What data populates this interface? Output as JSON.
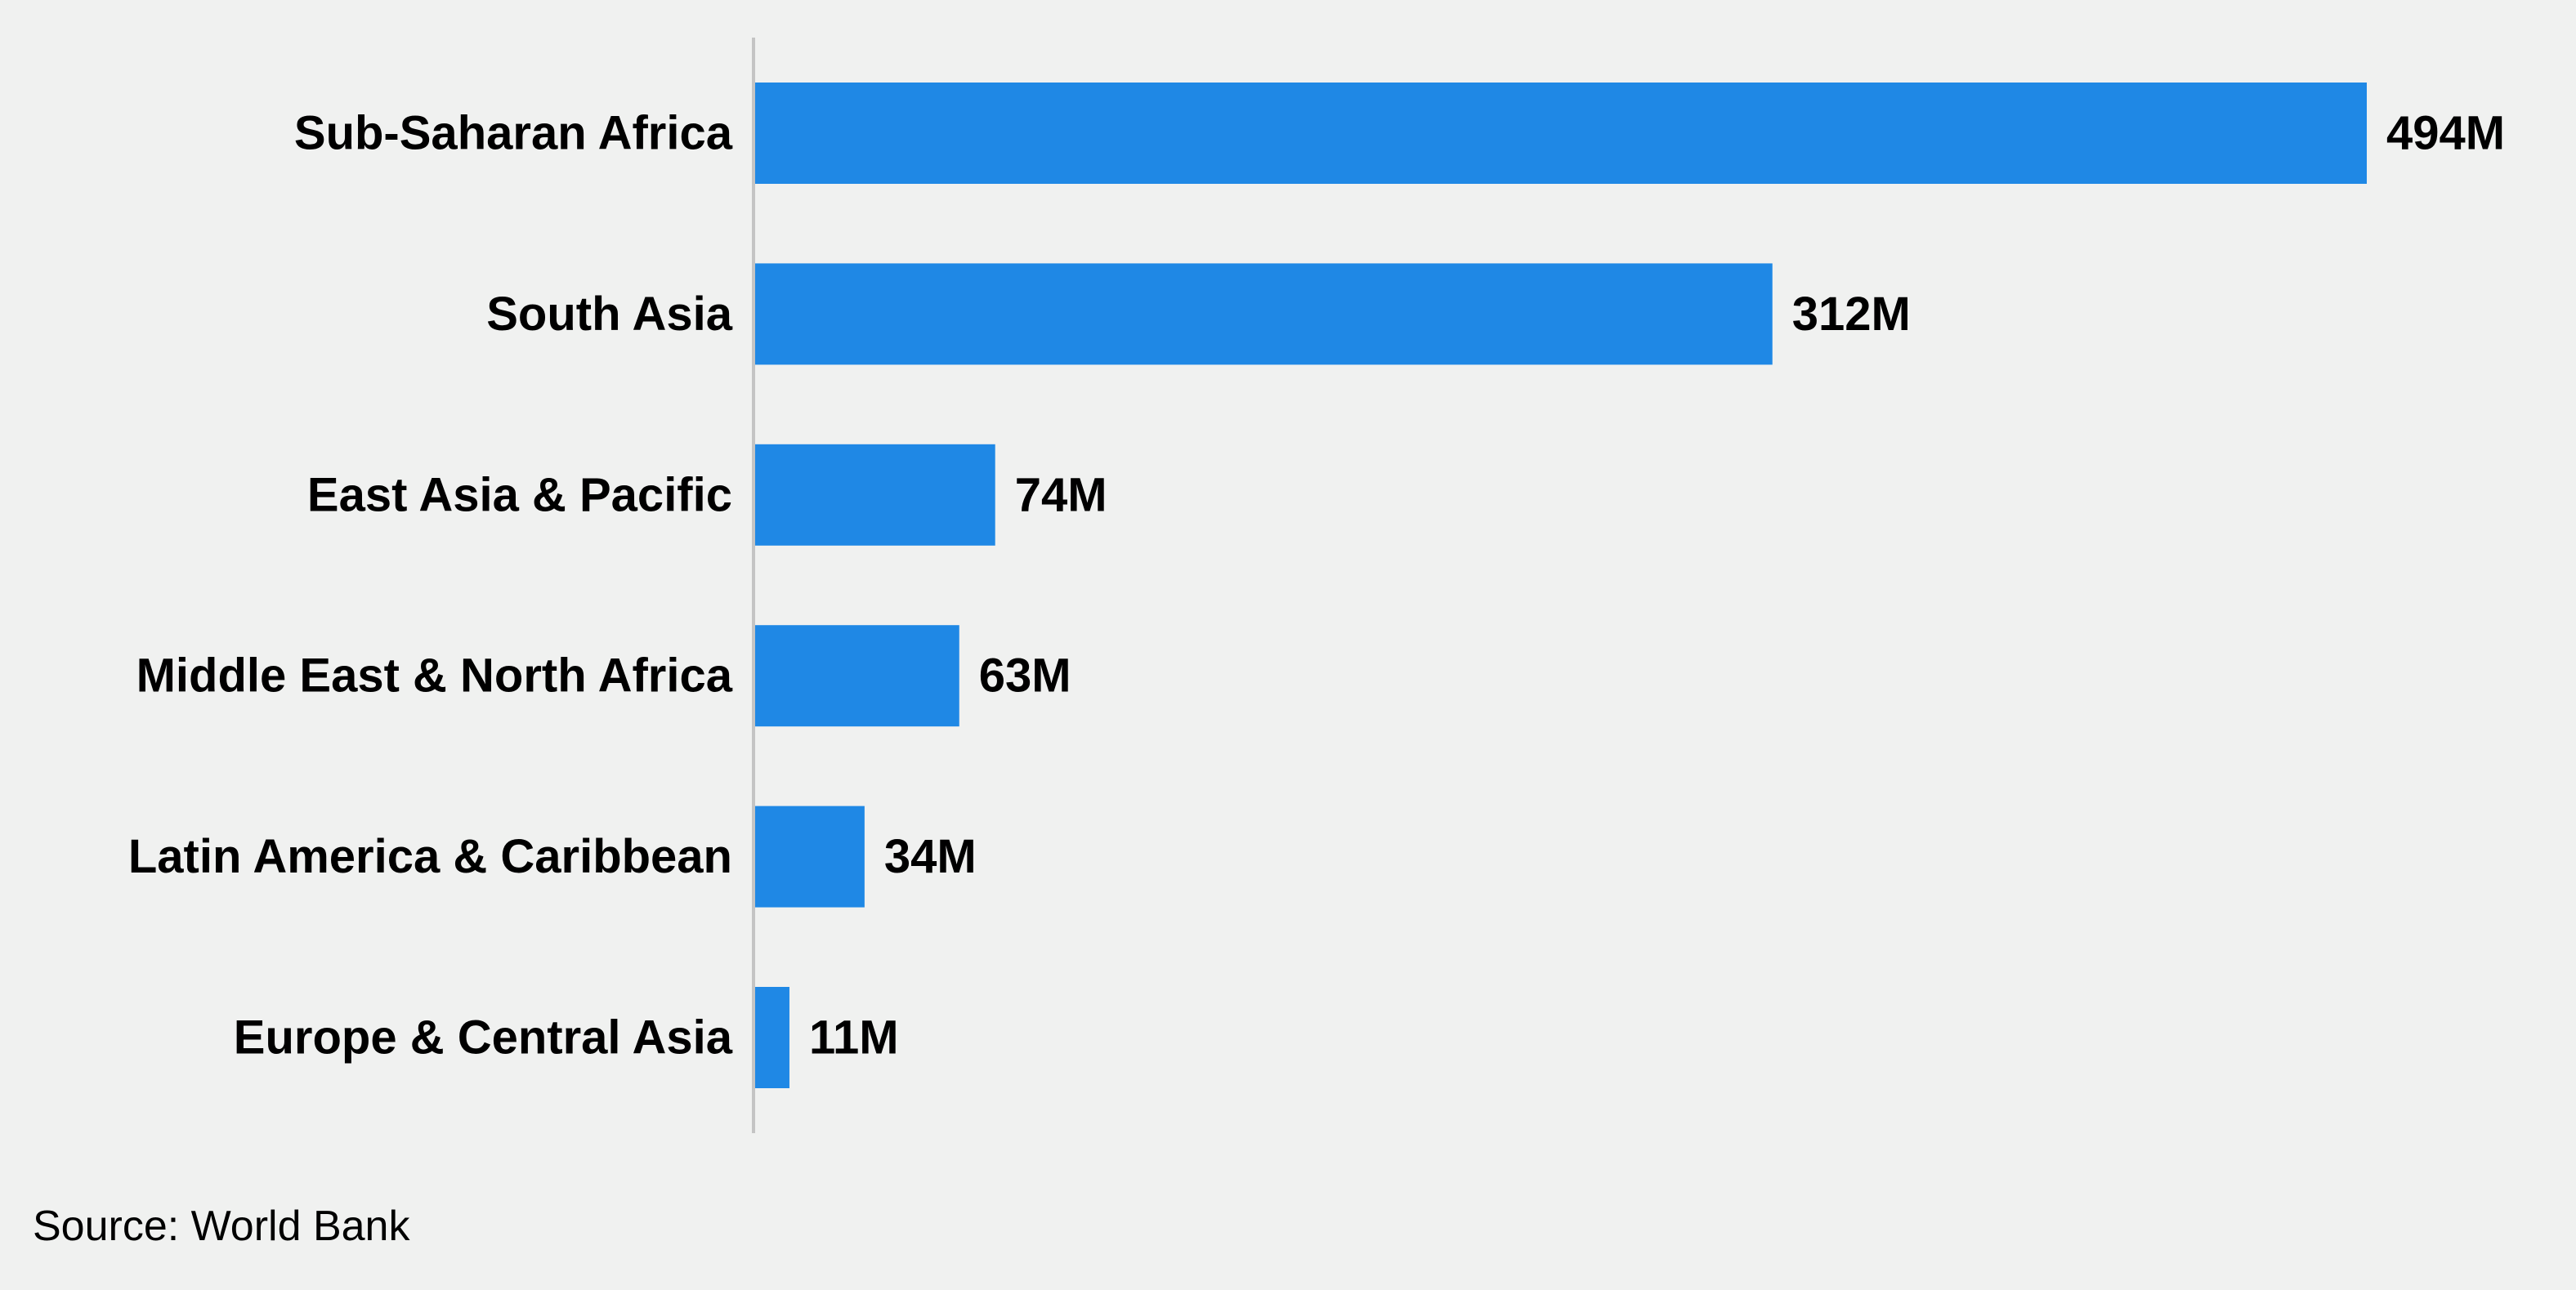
{
  "chart_data": {
    "type": "bar",
    "orientation": "horizontal",
    "categories": [
      "Sub-Saharan Africa",
      "South Asia",
      "East Asia & Pacific",
      "Middle East & North Africa",
      "Latin America & Caribbean",
      "Europe & Central Asia"
    ],
    "values": [
      494,
      312,
      74,
      63,
      34,
      11
    ],
    "value_labels": [
      "494M",
      "312M",
      "74M",
      "63M",
      "34M",
      "11M"
    ],
    "title": "",
    "xlabel": "",
    "ylabel": "",
    "xlim": [
      0,
      494
    ],
    "grid": false,
    "legend": "none",
    "bar_color": "#1f88e5",
    "axis_line_color": "#c4c4c4"
  },
  "source": "Source: World Bank"
}
